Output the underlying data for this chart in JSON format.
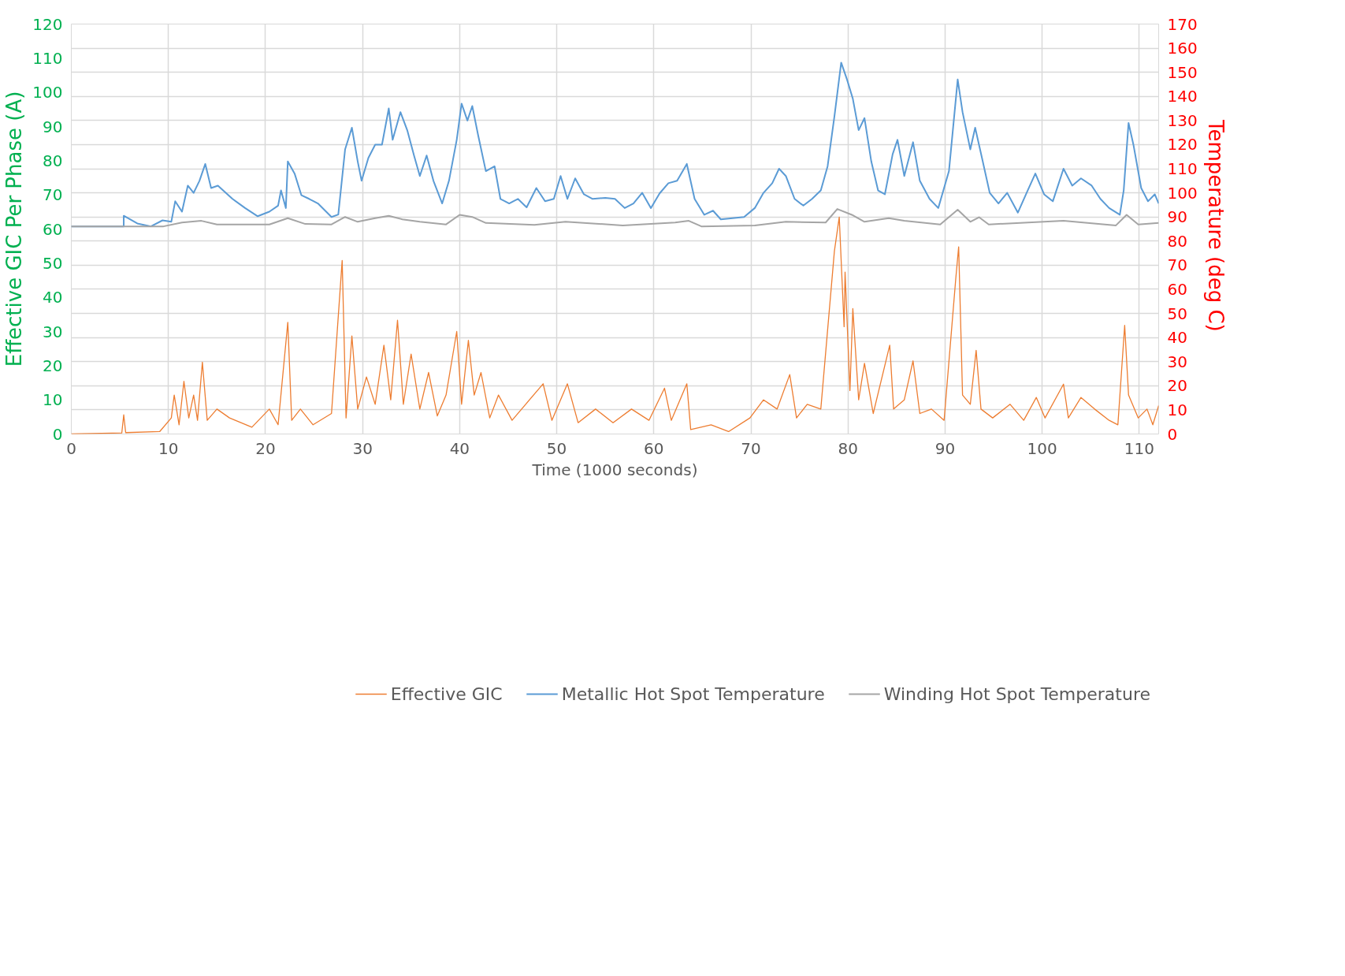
{
  "chart_data": {
    "type": "line",
    "xlabel": "Time (1000 seconds)",
    "ylabel": "Effective GIC Per Phase (A)",
    "y2label": "Temperature  (deg C)",
    "xlim": [
      0,
      112
    ],
    "xticks": [
      0,
      10,
      20,
      30,
      40,
      50,
      60,
      70,
      80,
      90,
      100,
      110
    ],
    "ylim": [
      0,
      120
    ],
    "yticks": [
      0,
      10,
      20,
      30,
      40,
      50,
      60,
      70,
      80,
      90,
      100,
      110,
      120
    ],
    "y2lim": [
      0,
      170
    ],
    "y2ticks": [
      0,
      10,
      20,
      30,
      40,
      50,
      60,
      70,
      80,
      90,
      100,
      110,
      120,
      130,
      140,
      150,
      160,
      170
    ],
    "grid": true,
    "legend": "bottom",
    "marker": "none",
    "line_style": "solid",
    "series": [
      {
        "name": "Effective GIC",
        "color": "#ed7d31",
        "x": [
          0,
          5.2,
          5.4,
          5.6,
          9.1,
          10.3,
          10.6,
          11.1,
          11.6,
          12.1,
          12.6,
          13,
          13.5,
          14,
          15,
          16.3,
          18.6,
          20.4,
          21.3,
          22.3,
          22.7,
          23.6,
          24.9,
          26.8,
          27.9,
          28.3,
          28.9,
          29.5,
          30.4,
          31.3,
          32.2,
          32.9,
          33.6,
          34.2,
          35,
          35.9,
          36.8,
          37.7,
          38.6,
          39.7,
          40.2,
          40.9,
          41.5,
          42.2,
          43.1,
          44,
          45.4,
          46.8,
          48.6,
          49.5,
          51.1,
          52.2,
          54,
          55.8,
          57.7,
          59.5,
          61.1,
          61.8,
          63.4,
          63.8,
          65.9,
          67.7,
          69.9,
          71.3,
          72.7,
          74,
          74.7,
          75.8,
          77.2,
          78.6,
          79.1,
          79.6,
          79.7,
          80.2,
          80.5,
          81.1,
          81.7,
          82.6,
          84.3,
          84.7,
          85.8,
          86.7,
          87.4,
          88.6,
          89.9,
          91.1,
          91.4,
          91.8,
          92.6,
          93.2,
          93.7,
          94.9,
          96.7,
          98.1,
          99.4,
          100.3,
          102.2,
          102.7,
          104,
          105.4,
          106.9,
          107.8,
          108.5,
          108.9,
          109.9,
          110.8,
          111.4,
          112
        ],
        "values": [
          0,
          0.3,
          5.6,
          0.4,
          0.7,
          4.7,
          11.4,
          2.7,
          15.4,
          4.7,
          11.4,
          4,
          21,
          4,
          7.3,
          4.7,
          2,
          7.3,
          2.7,
          32.7,
          4,
          7.3,
          2.7,
          6,
          50.8,
          4.7,
          28.7,
          7.3,
          16.7,
          8.7,
          26,
          10,
          33.3,
          8.7,
          23.4,
          7.3,
          18,
          5.3,
          11.4,
          30,
          8.7,
          27.4,
          11.4,
          18,
          4.7,
          11.4,
          4,
          8.7,
          14.7,
          4,
          14.7,
          3.3,
          7.3,
          3.3,
          7.3,
          4,
          13.4,
          4,
          14.7,
          1.3,
          2.7,
          0.7,
          4.7,
          10,
          7.3,
          17.4,
          4.7,
          8.7,
          7.3,
          53.5,
          63.5,
          31.4,
          47.4,
          12.7,
          36.7,
          10,
          20.7,
          6,
          26,
          7.3,
          10,
          21.4,
          6,
          7.3,
          4,
          45.4,
          54.8,
          11.4,
          8.7,
          24.5,
          7.3,
          4.7,
          8.7,
          4,
          10.7,
          4.7,
          14.6,
          4.7,
          10.7,
          7.3,
          4,
          2.7,
          31.8,
          11.4,
          4.7,
          7.3,
          2.7,
          8.3
        ]
      },
      {
        "name": "Metallic Hot Spot Temperature",
        "color": "#5b9bd5",
        "axis": "y2",
        "x": [
          0,
          5.4,
          5.4,
          6.8,
          8.2,
          9.4,
          10.3,
          10.7,
          11.4,
          12,
          12.6,
          13.2,
          13.8,
          14.4,
          15.1,
          16.6,
          17.9,
          19.2,
          20.4,
          21.3,
          21.6,
          22.1,
          22.3,
          23,
          23.7,
          24.5,
          25.4,
          26.8,
          27.5,
          28.2,
          28.9,
          29.5,
          29.9,
          30.6,
          31.3,
          32,
          32.7,
          33.1,
          33.9,
          34.6,
          35.3,
          35.9,
          36.6,
          37.3,
          38.2,
          38.9,
          39.7,
          40.2,
          40.8,
          41.3,
          41.9,
          42.7,
          43.6,
          44.2,
          45.1,
          46,
          46.9,
          47.9,
          48.8,
          49.7,
          50.4,
          51.1,
          51.9,
          52.8,
          53.7,
          55,
          56,
          57,
          57.9,
          58.8,
          59.7,
          60.6,
          61.5,
          62.4,
          63.4,
          64.2,
          65.2,
          66.1,
          66.9,
          68.1,
          69.3,
          70.4,
          71.3,
          72.2,
          72.9,
          73.6,
          74.5,
          75.4,
          76.3,
          77.2,
          77.9,
          78.6,
          79.3,
          79.9,
          80.5,
          81.1,
          81.7,
          82.4,
          83.1,
          83.8,
          84.6,
          85.1,
          85.8,
          86.7,
          87.4,
          88.4,
          89.3,
          90.4,
          91.3,
          91.8,
          92.6,
          93.1,
          93.8,
          94.6,
          95.5,
          96.4,
          97.5,
          98.4,
          99.3,
          100.2,
          101.1,
          102.2,
          103.1,
          104,
          105.1,
          106,
          106.9,
          108,
          108.4,
          108.9,
          109.4,
          110.2,
          110.9,
          111.6,
          112
        ],
        "values": [
          86.1,
          86.1,
          90.5,
          87.3,
          86.1,
          88.6,
          88,
          96.5,
          92.2,
          103,
          100,
          105,
          112,
          102,
          103,
          97.5,
          93.7,
          90.3,
          92.2,
          94.7,
          101,
          93.7,
          113,
          108,
          99,
          97.5,
          95.6,
          90,
          91,
          118,
          127,
          113,
          105,
          114.5,
          120,
          120,
          135,
          122,
          133.5,
          126,
          115.5,
          107,
          115.5,
          105,
          95.6,
          105,
          122,
          137,
          130,
          136,
          124,
          109,
          111,
          97.5,
          95.6,
          97.5,
          94,
          102,
          96.5,
          97.5,
          107,
          97.5,
          106,
          99.4,
          97.5,
          97.9,
          97.5,
          93.7,
          95.6,
          100,
          93.7,
          99.8,
          104,
          105,
          112,
          97.5,
          90.9,
          92.6,
          89,
          89.5,
          90,
          93.7,
          100,
          104,
          110,
          107,
          97.5,
          94.7,
          97.5,
          101,
          111,
          131.6,
          154,
          147,
          139,
          126,
          131,
          113,
          101,
          99.4,
          116,
          122,
          107,
          121,
          105,
          97.5,
          93.7,
          109,
          147,
          133.5,
          118,
          127,
          114.5,
          100,
          95.6,
          100,
          91.8,
          100,
          108,
          99.4,
          96.5,
          110,
          103,
          106,
          103,
          97.5,
          93.7,
          90.9,
          101,
          129,
          120,
          102,
          96.5,
          99.4,
          95.6
        ]
      },
      {
        "name": "Winding Hot Spot Temperature",
        "color": "#a5a5a5",
        "axis": "y2",
        "x": [
          0,
          9.5,
          11.4,
          13.4,
          15,
          20.4,
          22.3,
          24.1,
          26.8,
          28.2,
          29.5,
          31.3,
          32.7,
          34.1,
          35.9,
          38.6,
          40,
          41.3,
          42.7,
          47.7,
          50.9,
          56.8,
          62.2,
          63.6,
          64.9,
          70.4,
          73.6,
          77.7,
          78.9,
          80.4,
          81.7,
          84.2,
          85.8,
          89.5,
          91.3,
          92.6,
          93.5,
          94.5,
          102.2,
          107.6,
          108.7,
          109.9,
          112
        ],
        "values": [
          86.1,
          86.1,
          87.7,
          88.4,
          86.9,
          86.9,
          89.5,
          87.1,
          86.9,
          90,
          88,
          89.5,
          90.5,
          89,
          88,
          86.9,
          90.9,
          90,
          87.5,
          86.7,
          88,
          86.5,
          87.7,
          88.4,
          86.1,
          86.5,
          88,
          87.7,
          93.3,
          90.9,
          88,
          89.5,
          88.4,
          86.9,
          93,
          88,
          89.9,
          86.9,
          88.4,
          86.5,
          90.9,
          86.9,
          87.5
        ]
      }
    ]
  }
}
